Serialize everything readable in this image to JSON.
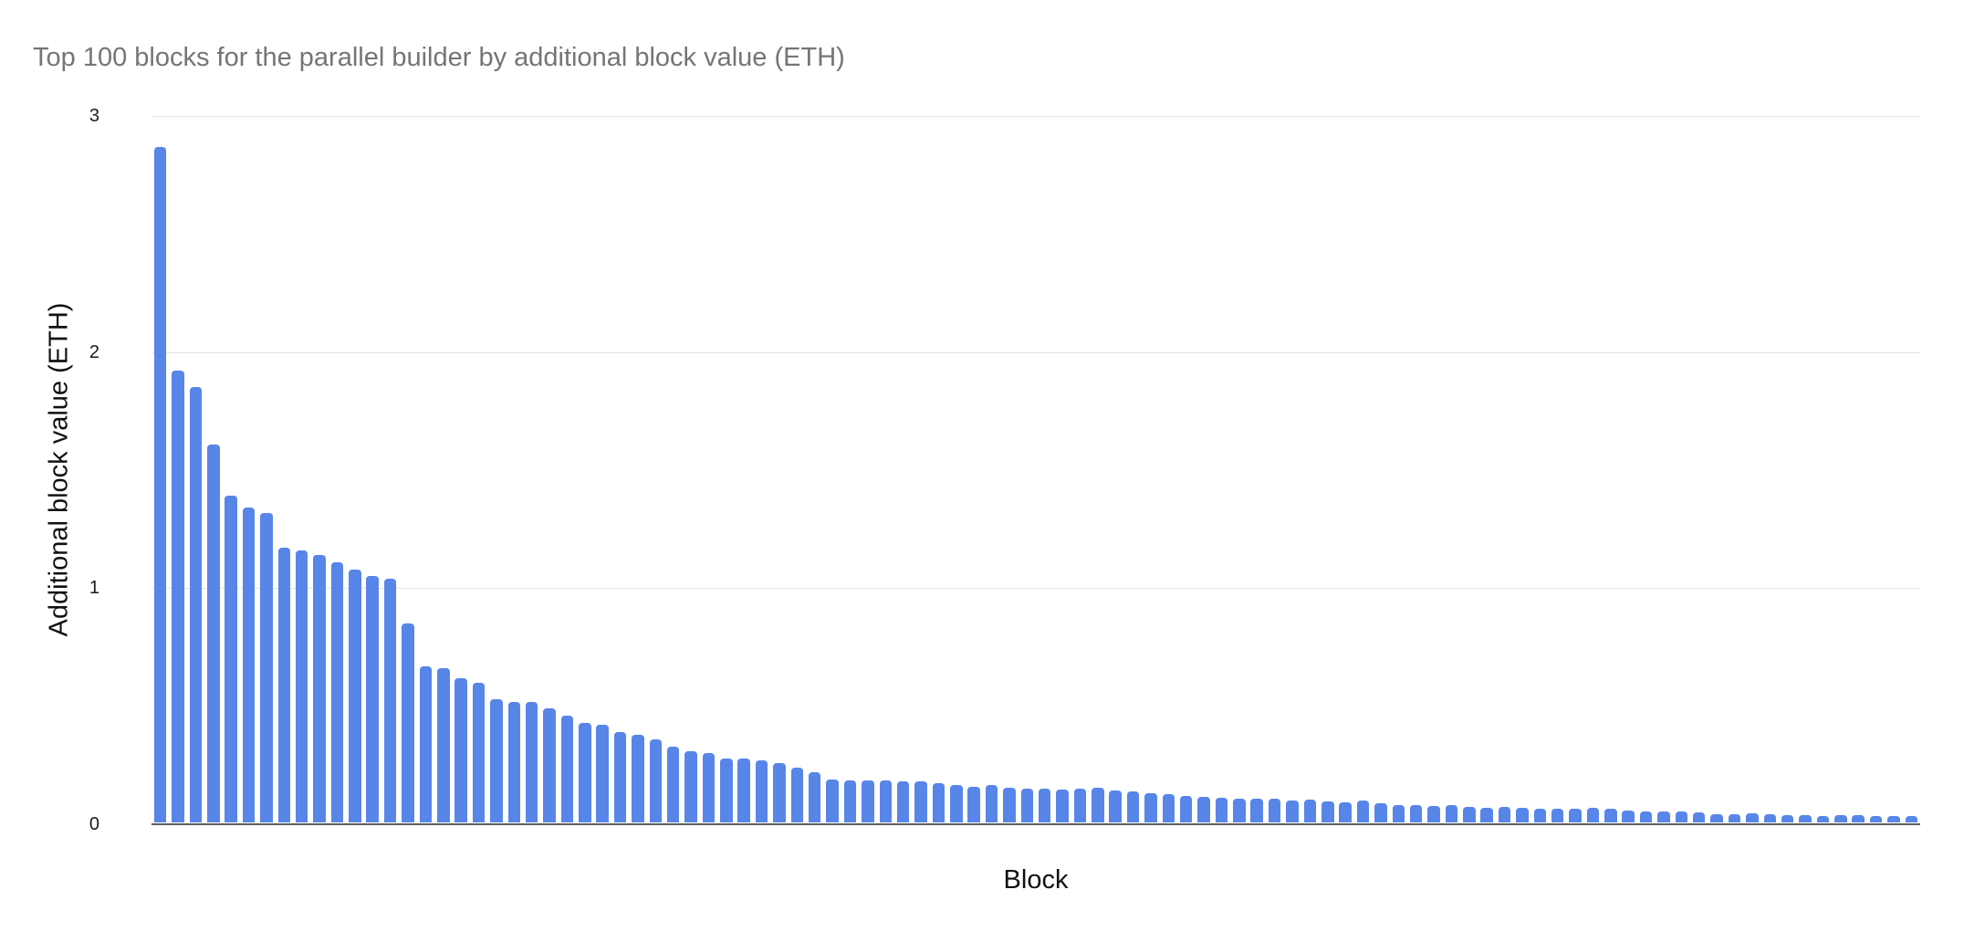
{
  "chart_data": {
    "type": "bar",
    "title": "Top 100 blocks for the parallel builder by additional block value (ETH)",
    "xlabel": "Block",
    "ylabel": "Additional block value (ETH)",
    "ylim": [
      0,
      3
    ],
    "y_ticks": [
      0,
      1,
      2,
      3
    ],
    "x_tick_labels": [],
    "grid": "horizontal-only",
    "legend": "none",
    "bar_count": 100,
    "colors": {
      "bar": "#5886e8",
      "title_text": "#757575",
      "axis_text": "#111111",
      "tick_text": "#1a1a1a",
      "gridline": "#e3e3e3",
      "baseline": "#5f5f5f",
      "background": "#ffffff"
    },
    "values": [
      2.87,
      1.92,
      1.85,
      1.61,
      1.39,
      1.34,
      1.32,
      1.17,
      1.16,
      1.14,
      1.11,
      1.08,
      1.05,
      1.04,
      0.85,
      0.67,
      0.66,
      0.62,
      0.6,
      0.53,
      0.52,
      0.52,
      0.49,
      0.46,
      0.43,
      0.42,
      0.39,
      0.38,
      0.36,
      0.33,
      0.31,
      0.3,
      0.28,
      0.28,
      0.27,
      0.26,
      0.24,
      0.22,
      0.19,
      0.185,
      0.185,
      0.185,
      0.18,
      0.18,
      0.175,
      0.165,
      0.16,
      0.165,
      0.155,
      0.152,
      0.152,
      0.148,
      0.15,
      0.153,
      0.143,
      0.14,
      0.13,
      0.128,
      0.12,
      0.117,
      0.114,
      0.108,
      0.108,
      0.11,
      0.101,
      0.104,
      0.097,
      0.091,
      0.099,
      0.088,
      0.082,
      0.082,
      0.078,
      0.082,
      0.073,
      0.069,
      0.072,
      0.069,
      0.067,
      0.065,
      0.065,
      0.069,
      0.067,
      0.059,
      0.056,
      0.056,
      0.053,
      0.05,
      0.044,
      0.044,
      0.046,
      0.044,
      0.04,
      0.04,
      0.036,
      0.04,
      0.04,
      0.036,
      0.033,
      0.036
    ]
  }
}
